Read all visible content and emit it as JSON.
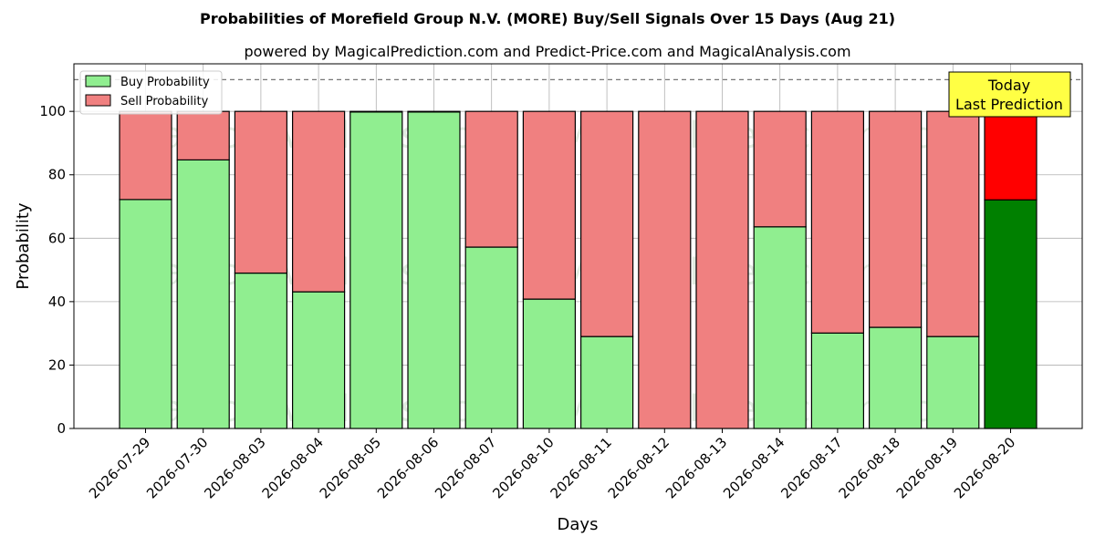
{
  "chart_data": {
    "type": "bar",
    "stacked": true,
    "title": "Probabilities of Morefield Group N.V. (MORE) Buy/Sell Signals Over 15 Days (Aug 21)",
    "subtitle": "powered by MagicalPrediction.com and Predict-Price.com and MagicalAnalysis.com",
    "xlabel": "Days",
    "ylabel": "Probability",
    "ylim": [
      0,
      115
    ],
    "yticks": [
      0,
      20,
      40,
      60,
      80,
      100
    ],
    "reference_line": 110,
    "grid": true,
    "legend_position": "top-left",
    "categories": [
      "2026-07-29",
      "2026-07-30",
      "2026-08-03",
      "2026-08-04",
      "2026-08-05",
      "2026-08-06",
      "2026-08-07",
      "2026-08-10",
      "2026-08-11",
      "2026-08-12",
      "2026-08-13",
      "2026-08-14",
      "2026-08-17",
      "2026-08-18",
      "2026-08-19",
      "2026-08-20"
    ],
    "series": [
      {
        "name": "Buy Probability",
        "color": "#90ee90",
        "highlight_color": "#008000",
        "values": [
          72.2,
          84.7,
          49.0,
          43.1,
          99.8,
          99.8,
          57.2,
          40.8,
          29.0,
          0,
          0,
          63.6,
          30.1,
          31.9,
          29.0,
          72.1
        ]
      },
      {
        "name": "Sell Probability",
        "color": "#f08080",
        "highlight_color": "#ff0000",
        "values": [
          27.8,
          15.3,
          51.0,
          56.9,
          0.2,
          0.2,
          42.8,
          59.2,
          71.0,
          100,
          100,
          36.4,
          69.9,
          68.1,
          71.0,
          27.9
        ]
      }
    ],
    "annotation": {
      "line1": "Today",
      "line2": "Last Prediction",
      "background": "#ffff44"
    },
    "watermarks": [
      "MagicalAnalysis.com",
      "MagicalPrediction.com"
    ]
  }
}
